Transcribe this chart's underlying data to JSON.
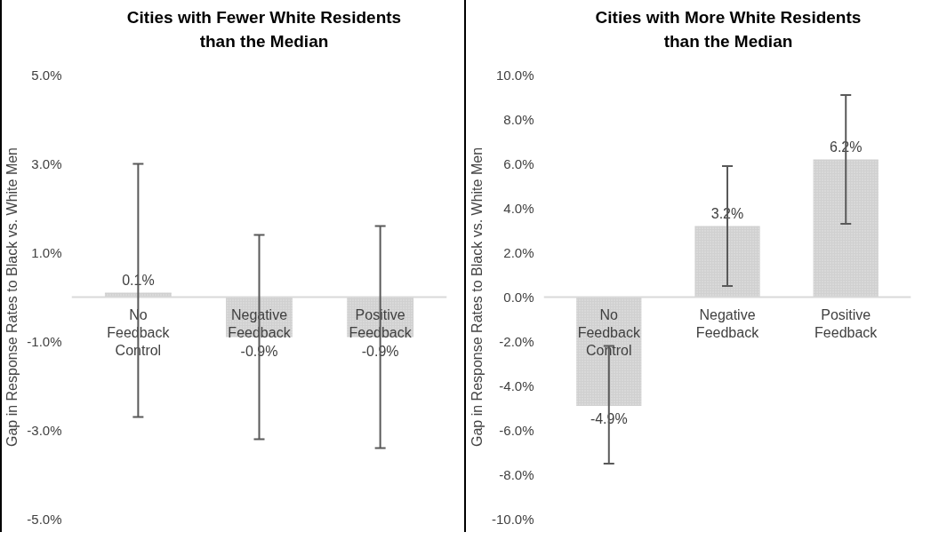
{
  "chart_data": [
    {
      "type": "bar",
      "title": "Cities with Fewer White Residents than the Median",
      "ylabel": "Gap in Response Rates to Black vs. White Men",
      "categories": [
        "No Feedback Control",
        "Negative Feedback",
        "Positive Feedback"
      ],
      "values": [
        0.1,
        -0.9,
        -0.9
      ],
      "color": "#d0d0d0",
      "errors": [
        [
          -2.7,
          3.0
        ],
        [
          -3.2,
          1.4
        ],
        [
          -3.4,
          1.6
        ]
      ],
      "value_labels": [
        "0.1%",
        "-0.9%",
        "-0.9%"
      ],
      "ylim": [
        -5,
        5
      ],
      "yticks": [
        {
          "value": -5,
          "label": "-5.0%"
        },
        {
          "value": -3,
          "label": "-3.0%"
        },
        {
          "value": -1,
          "label": "-1.0%"
        },
        {
          "value": 1,
          "label": "1.0%"
        },
        {
          "value": 3,
          "label": "3.0%"
        },
        {
          "value": 5,
          "label": "5.0%"
        }
      ],
      "grid": false
    },
    {
      "type": "bar",
      "title": "Cities with More White Residents than the Median",
      "ylabel": "Gap in Response Rates to Black vs. White Men",
      "categories": [
        "No Feedback Control",
        "Negative Feedback",
        "Positive Feedback"
      ],
      "values": [
        -4.9,
        3.2,
        6.2
      ],
      "color": "#d0d0d0",
      "errors": [
        [
          -7.5,
          -2.2
        ],
        [
          0.5,
          5.9
        ],
        [
          3.3,
          9.1
        ]
      ],
      "value_labels": [
        "-4.9%",
        "3.2%",
        "6.2%"
      ],
      "ylim": [
        -10,
        10
      ],
      "yticks": [
        {
          "value": -10,
          "label": "-10.0%"
        },
        {
          "value": -8,
          "label": "-8.0%"
        },
        {
          "value": -6,
          "label": "-6.0%"
        },
        {
          "value": -4,
          "label": "-4.0%"
        },
        {
          "value": -2,
          "label": "-2.0%"
        },
        {
          "value": 0,
          "label": "0.0%"
        },
        {
          "value": 2,
          "label": "2.0%"
        },
        {
          "value": 4,
          "label": "4.0%"
        },
        {
          "value": 6,
          "label": "6.0%"
        },
        {
          "value": 8,
          "label": "8.0%"
        },
        {
          "value": 10,
          "label": "10.0%"
        }
      ],
      "grid": false
    }
  ]
}
